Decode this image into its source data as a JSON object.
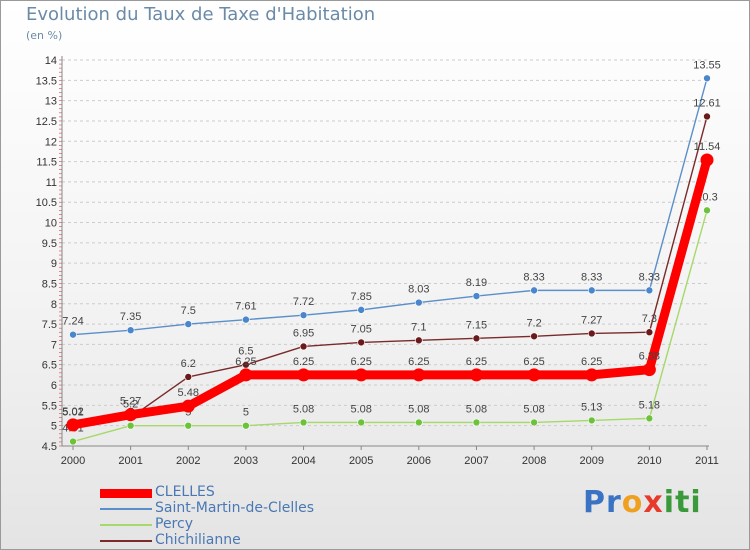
{
  "title": "Evolution du Taux de Taxe d'Habitation",
  "unit": "(en %)",
  "logo": [
    "P",
    "r",
    "o",
    "x",
    "i",
    "t",
    "i"
  ],
  "colors": {
    "axis_text": "#333333",
    "grid": "#cccccc",
    "title": "#6a8aa8",
    "legend_text": "#4a78b3",
    "logo": [
      "#3a73c4",
      "#3a73c4",
      "#f0a020",
      "#e83a2a",
      "#3a9a3a",
      "#3a9a3a",
      "#3a9a3a"
    ]
  },
  "chart_data": {
    "type": "line",
    "title": "Evolution du Taux de Taxe d'Habitation",
    "ylabel": "(en %)",
    "xlabel": "",
    "x": [
      "2000",
      "2001",
      "2002",
      "2003",
      "2004",
      "2005",
      "2006",
      "2007",
      "2008",
      "2009",
      "2010",
      "2011"
    ],
    "ylim": [
      4.5,
      14
    ],
    "yticks": [
      "4.5",
      "5",
      "5.5",
      "6",
      "6.5",
      "7",
      "7.5",
      "8",
      "8.5",
      "9",
      "9.5",
      "10",
      "10.5",
      "11",
      "11.5",
      "12",
      "12.5",
      "13",
      "13.5",
      "14"
    ],
    "grid": true,
    "legend_position": "bottom-left",
    "series": [
      {
        "name": "Saint-Martin-de-Clelles",
        "color": "#5b8fc9",
        "marker": "#4a86cc",
        "values": [
          7.24,
          7.35,
          7.5,
          7.61,
          7.72,
          7.85,
          8.03,
          8.19,
          8.33,
          8.33,
          8.33,
          13.55
        ],
        "labels": [
          "7.24",
          "7.35",
          "7.5",
          "7.61",
          "7.72",
          "7.85",
          "8.03",
          "8.19",
          "8.33",
          "8.33",
          "8.33",
          "13.55"
        ]
      },
      {
        "name": "Percy",
        "color": "#a6d86a",
        "marker": "#6cc23a",
        "values": [
          4.61,
          5,
          5,
          5,
          5.08,
          5.08,
          5.08,
          5.08,
          5.08,
          5.13,
          5.18,
          10.3
        ],
        "labels": [
          "4.61",
          "5",
          "5",
          "5",
          "5.08",
          "5.08",
          "5.08",
          "5.08",
          "5.08",
          "5.13",
          "5.18",
          "10.3"
        ]
      },
      {
        "name": "Chichilianne",
        "color": "#7a2a2a",
        "marker": "#6a1a1a",
        "values": [
          5.01,
          5.2,
          6.2,
          6.5,
          6.95,
          7.05,
          7.1,
          7.15,
          7.2,
          7.27,
          7.3,
          12.61
        ],
        "labels": [
          "5.01",
          "5.2",
          "6.2",
          "6.5",
          "6.95",
          "7.05",
          "7.1",
          "7.15",
          "7.2",
          "7.27",
          "7.3",
          "12.61"
        ]
      },
      {
        "name": "CLELLES",
        "color": "#ff0000",
        "marker": "#ff0000",
        "values": [
          5.02,
          5.27,
          5.48,
          6.25,
          6.25,
          6.25,
          6.25,
          6.25,
          6.25,
          6.25,
          6.38,
          11.54
        ],
        "labels": [
          "5.02",
          "5.27",
          "5.48",
          "6.25",
          "6.25",
          "6.25",
          "6.25",
          "6.25",
          "6.25",
          "6.25",
          "6.38",
          "11.54"
        ]
      }
    ],
    "legend": [
      "CLELLES",
      "Saint-Martin-de-Clelles",
      "Percy",
      "Chichilianne"
    ]
  }
}
